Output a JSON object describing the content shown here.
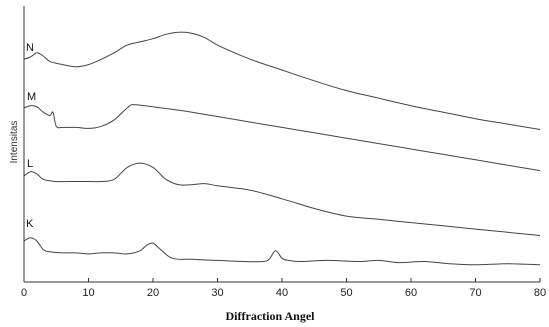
{
  "chart_data": {
    "type": "line",
    "title": "",
    "xlabel": "Diffraction Angel",
    "ylabel": "Intensitas",
    "xlim": [
      0,
      80
    ],
    "xticks": [
      0,
      10,
      20,
      30,
      40,
      50,
      60,
      70,
      80
    ],
    "tick_labels": [
      "0",
      "10",
      "20",
      "30",
      "40",
      "50",
      "60",
      "70",
      "80"
    ],
    "grid": false,
    "legend": "none",
    "line_color": "#444444",
    "series": [
      {
        "name": "N",
        "x": [
          0,
          1,
          2,
          3,
          4,
          6,
          8,
          10,
          12,
          14,
          16,
          18,
          20,
          22,
          24,
          26,
          28,
          30,
          33,
          36,
          40,
          45,
          50,
          55,
          60,
          65,
          70,
          75,
          80
        ],
        "y": [
          9.3,
          9.5,
          9.9,
          9.6,
          9.1,
          8.8,
          8.6,
          8.8,
          9.3,
          9.9,
          10.6,
          10.9,
          11.2,
          11.6,
          11.8,
          11.7,
          11.3,
          10.6,
          9.8,
          9.1,
          8.3,
          7.3,
          6.4,
          5.7,
          5.0,
          4.4,
          3.8,
          3.3,
          2.8
        ]
      },
      {
        "name": "M",
        "x": [
          0,
          1,
          2,
          3,
          4,
          4.5,
          5,
          6,
          8,
          10,
          12,
          14,
          16,
          17,
          20,
          25,
          30,
          35,
          40,
          45,
          50,
          55,
          60,
          65,
          70,
          75,
          80
        ],
        "y": [
          4.8,
          5.0,
          4.9,
          4.4,
          4.1,
          4.4,
          3.1,
          3.0,
          3.0,
          2.9,
          3.1,
          3.7,
          4.8,
          5.1,
          4.9,
          4.5,
          4.0,
          3.5,
          3.0,
          2.5,
          2.0,
          1.5,
          1.0,
          0.5,
          0.0,
          -0.5,
          -1.0
        ]
      },
      {
        "name": "L",
        "x": [
          0,
          1,
          2,
          3,
          5,
          8,
          10,
          12,
          14,
          16,
          18,
          20,
          22,
          24,
          26,
          28,
          30,
          35,
          40,
          45,
          50,
          55,
          60,
          65,
          70,
          75,
          80
        ],
        "y": [
          -1.5,
          -1.1,
          -1.3,
          -1.8,
          -2.0,
          -2.0,
          -2.0,
          -2.0,
          -1.8,
          -0.7,
          -0.3,
          -0.7,
          -1.8,
          -2.3,
          -2.3,
          -2.2,
          -2.4,
          -2.8,
          -3.6,
          -4.5,
          -5.2,
          -5.5,
          -5.8,
          -6.1,
          -6.4,
          -6.7,
          -7.0
        ]
      },
      {
        "name": "K",
        "x": [
          0,
          1,
          2,
          3,
          4,
          6,
          8,
          10,
          12,
          14,
          16,
          18,
          19,
          20,
          21,
          23,
          26,
          30,
          34,
          37,
          38,
          39,
          40,
          41,
          43,
          47,
          52,
          55,
          58,
          62,
          66,
          70,
          75,
          80
        ],
        "y": [
          -7.5,
          -7.2,
          -7.5,
          -8.3,
          -8.5,
          -8.6,
          -8.6,
          -8.7,
          -8.6,
          -8.6,
          -8.7,
          -8.4,
          -7.9,
          -7.7,
          -8.2,
          -9.1,
          -9.2,
          -9.3,
          -9.4,
          -9.4,
          -9.2,
          -8.4,
          -9.1,
          -9.3,
          -9.4,
          -9.3,
          -9.4,
          -9.3,
          -9.5,
          -9.4,
          -9.6,
          -9.7,
          -9.6,
          -9.7
        ]
      }
    ]
  }
}
